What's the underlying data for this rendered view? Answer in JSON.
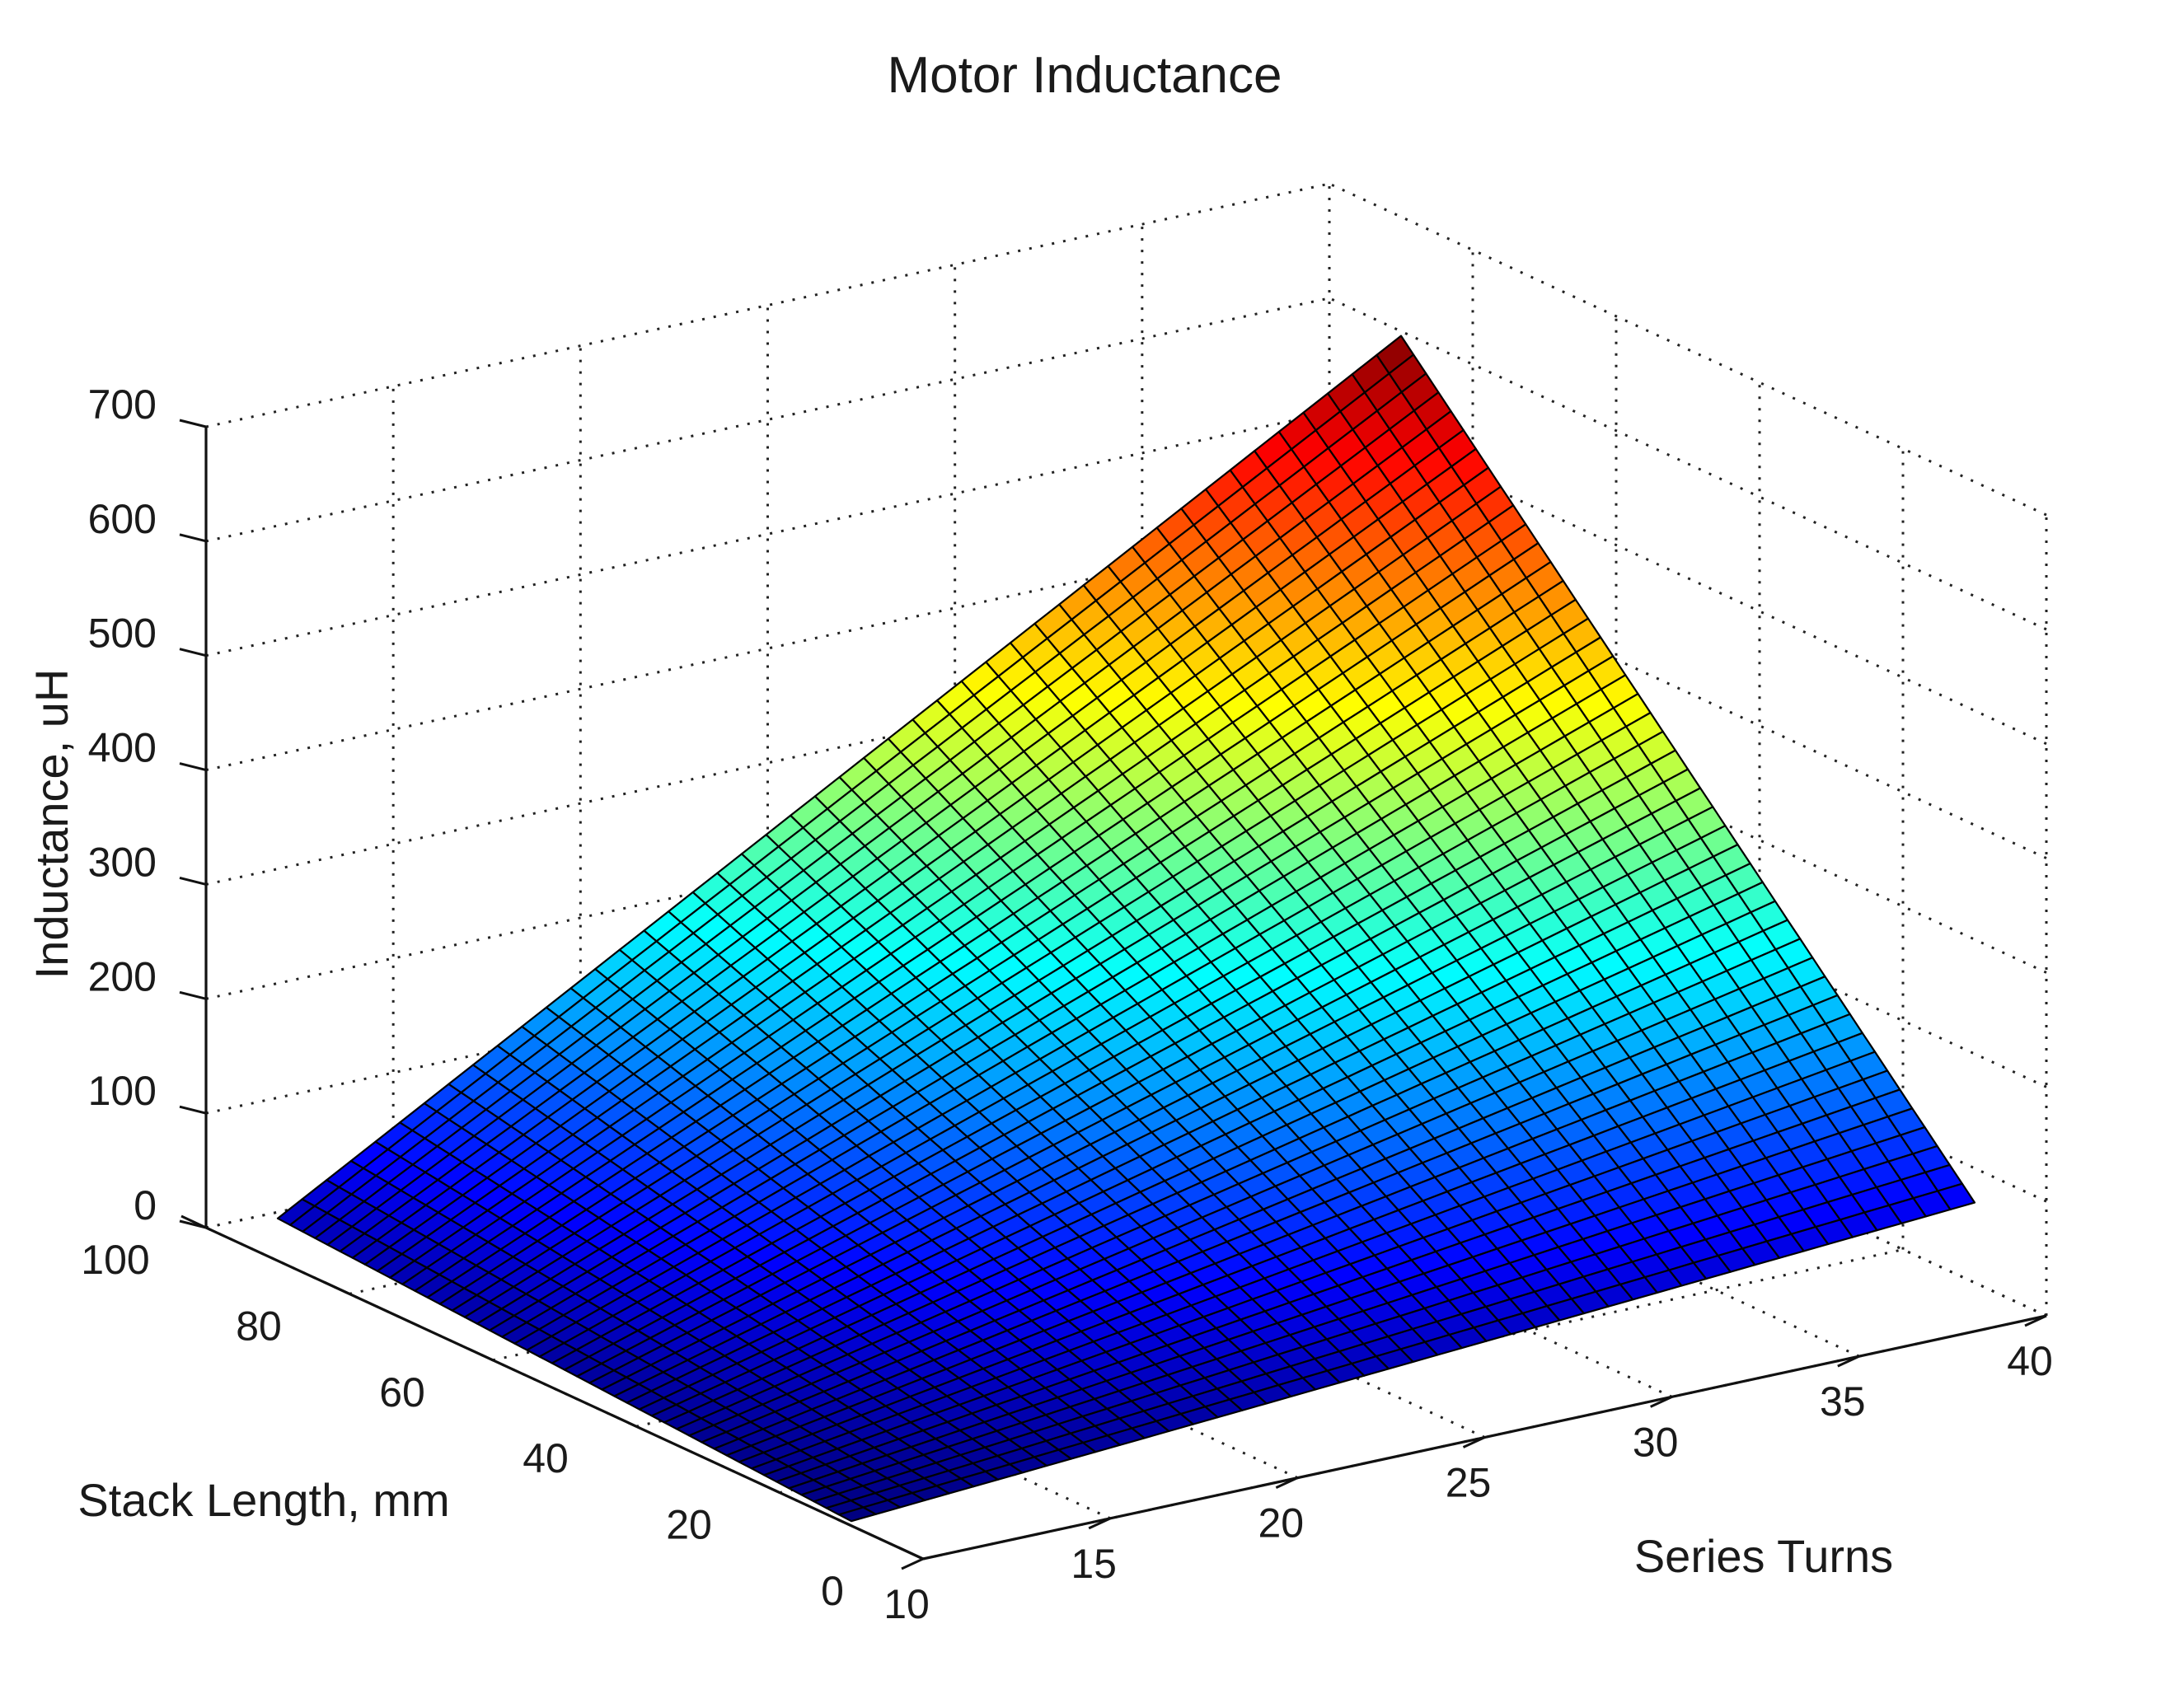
{
  "chart_data": {
    "type": "surface",
    "title": "Motor Inductance",
    "xlabel": "Series Turns",
    "ylabel": "Stack Length, mm",
    "zlabel": "Inductance, uH",
    "xlim": [
      10,
      40
    ],
    "ylim": [
      0,
      100
    ],
    "zlim": [
      0,
      700
    ],
    "x_ticks": [
      "10",
      "15",
      "20",
      "25",
      "30",
      "35",
      "40"
    ],
    "y_ticks": [
      "0",
      "20",
      "40",
      "60",
      "80",
      "100"
    ],
    "z_ticks": [
      "0",
      "100",
      "200",
      "300",
      "400",
      "500",
      "600",
      "700"
    ],
    "x_range": [
      10,
      40
    ],
    "y_range": [
      10,
      90
    ],
    "z_corners": {
      "x10_y10": 4,
      "x40_y10": 70,
      "x10_y90": 37,
      "x40_y90": 596
    },
    "colormap": "jet",
    "grid": true,
    "colors": [
      "#00008f",
      "#0000ff",
      "#00ffff",
      "#ffff00",
      "#ff0000",
      "#800000"
    ]
  }
}
